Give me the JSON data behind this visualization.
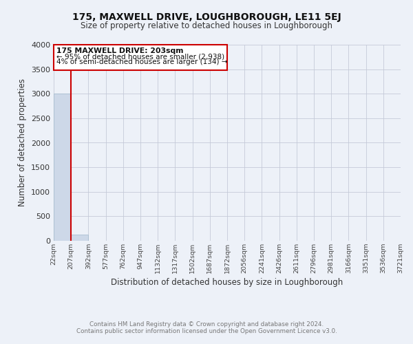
{
  "title": "175, MAXWELL DRIVE, LOUGHBOROUGH, LE11 5EJ",
  "subtitle": "Size of property relative to detached houses in Loughborough",
  "xlabel": "Distribution of detached houses by size in Loughborough",
  "ylabel": "Number of detached properties",
  "bin_edges": [
    22,
    207,
    392,
    577,
    762,
    947,
    1132,
    1317,
    1502,
    1687,
    1872,
    2056,
    2241,
    2426,
    2611,
    2796,
    2981,
    3166,
    3351,
    3536,
    3721
  ],
  "bar_heights": [
    3000,
    120,
    0,
    0,
    0,
    0,
    0,
    0,
    0,
    0,
    0,
    0,
    0,
    0,
    0,
    0,
    0,
    0,
    0,
    0
  ],
  "bar_color": "#cdd8e8",
  "bar_edgecolor": "#a8bdd0",
  "bar_linewidth": 0.6,
  "background_color": "#edf1f8",
  "grid_color": "#c5cad8",
  "red_line_x": 203,
  "annotation_title": "175 MAXWELL DRIVE: 203sqm",
  "annotation_line1": "← 95% of detached houses are smaller (2,938)",
  "annotation_line2": "4% of semi-detached houses are larger (134) →",
  "annotation_box_edgecolor": "#cc0000",
  "red_line_color": "#cc0000",
  "ylim": [
    0,
    4000
  ],
  "yticks": [
    0,
    500,
    1000,
    1500,
    2000,
    2500,
    3000,
    3500,
    4000
  ],
  "tick_labels": [
    "22sqm",
    "207sqm",
    "392sqm",
    "577sqm",
    "762sqm",
    "947sqm",
    "1132sqm",
    "1317sqm",
    "1502sqm",
    "1687sqm",
    "1872sqm",
    "2056sqm",
    "2241sqm",
    "2426sqm",
    "2611sqm",
    "2796sqm",
    "2981sqm",
    "3166sqm",
    "3351sqm",
    "3536sqm",
    "3721sqm"
  ],
  "footer_line1": "Contains HM Land Registry data © Crown copyright and database right 2024.",
  "footer_line2": "Contains public sector information licensed under the Open Government Licence v3.0."
}
